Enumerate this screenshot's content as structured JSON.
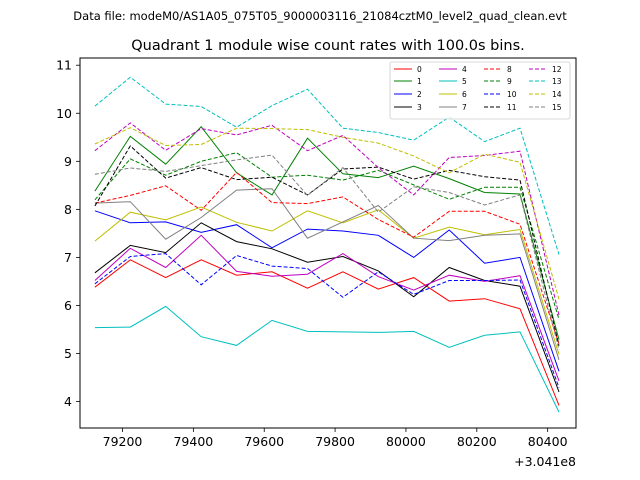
{
  "chart_data": {
    "type": "line",
    "suptitle": "Data file: modeM0/AS1A05_075T05_9000003116_21084cztM0_level2_quad_clean.evt",
    "title": "Quadrant 1 module wise count rates with 100.0s bins.",
    "xlabel": "",
    "ylabel": "",
    "offset_text": "+3.041e8",
    "xlim": [
      79080,
      80480
    ],
    "ylim": [
      3.45,
      11.15
    ],
    "xticks": [
      79200,
      79400,
      79600,
      79800,
      80000,
      80200,
      80400
    ],
    "xtick_labels": [
      "79200",
      "79400",
      "79600",
      "79800",
      "80000",
      "80200",
      "80400"
    ],
    "yticks": [
      4,
      5,
      6,
      7,
      8,
      9,
      10,
      11
    ],
    "ytick_labels": [
      "4",
      "5",
      "6",
      "7",
      "8",
      "9",
      "10",
      "11"
    ],
    "legend_location": "upper right",
    "x": [
      79122,
      79222,
      79322,
      79422,
      79522,
      79622,
      79722,
      79822,
      79922,
      80022,
      80122,
      80222,
      80322,
      80432
    ],
    "series": [
      {
        "name": "0",
        "color": "#ff0000",
        "dash": "solid",
        "values": [
          6.38,
          6.95,
          6.58,
          6.95,
          6.63,
          6.7,
          6.36,
          6.7,
          6.34,
          6.58,
          6.09,
          6.14,
          5.93,
          3.92
        ]
      },
      {
        "name": "1",
        "color": "#008000",
        "dash": "solid",
        "values": [
          8.38,
          9.52,
          8.94,
          9.72,
          8.76,
          8.3,
          9.48,
          8.74,
          8.66,
          8.9,
          8.64,
          8.35,
          8.32,
          5.29
        ]
      },
      {
        "name": "2",
        "color": "#0000ff",
        "dash": "solid",
        "values": [
          7.97,
          7.72,
          7.74,
          7.52,
          7.68,
          7.2,
          7.59,
          7.55,
          7.46,
          7.0,
          7.57,
          6.88,
          7.0,
          4.63
        ]
      },
      {
        "name": "3",
        "color": "#000000",
        "dash": "solid",
        "values": [
          6.68,
          7.25,
          7.1,
          7.72,
          7.33,
          7.18,
          6.9,
          7.02,
          6.72,
          6.18,
          6.79,
          6.52,
          6.4,
          4.2
        ]
      },
      {
        "name": "4",
        "color": "#bf00bf",
        "dash": "solid",
        "values": [
          6.52,
          7.19,
          6.79,
          7.46,
          6.71,
          6.61,
          6.65,
          7.08,
          6.6,
          6.32,
          6.63,
          6.5,
          6.62,
          4.43
        ]
      },
      {
        "name": "5",
        "color": "#00bfbf",
        "dash": "solid",
        "values": [
          5.54,
          5.55,
          5.98,
          5.35,
          5.17,
          5.69,
          5.46,
          5.45,
          5.44,
          5.46,
          5.13,
          5.38,
          5.45,
          3.78
        ]
      },
      {
        "name": "6",
        "color": "#bfbf00",
        "dash": "solid",
        "values": [
          7.34,
          7.94,
          7.78,
          8.05,
          7.73,
          7.55,
          7.97,
          7.72,
          7.99,
          7.4,
          7.63,
          7.47,
          7.58,
          4.98
        ]
      },
      {
        "name": "7",
        "color": "#808080",
        "dash": "solid",
        "values": [
          8.13,
          8.16,
          7.38,
          7.83,
          8.4,
          8.43,
          7.4,
          7.74,
          8.08,
          7.4,
          7.35,
          7.46,
          7.49,
          4.87
        ]
      },
      {
        "name": "8",
        "color": "#ff0000",
        "dash": "dashed",
        "values": [
          8.13,
          8.29,
          8.49,
          7.98,
          8.77,
          8.14,
          8.12,
          8.26,
          7.79,
          7.42,
          7.96,
          7.96,
          7.69,
          5.2
        ]
      },
      {
        "name": "9",
        "color": "#008000",
        "dash": "dashed",
        "values": [
          8.2,
          9.05,
          8.71,
          9.0,
          9.18,
          8.67,
          8.71,
          8.61,
          8.81,
          8.51,
          8.21,
          8.46,
          8.46,
          5.71
        ]
      },
      {
        "name": "10",
        "color": "#0000ff",
        "dash": "dashed",
        "values": [
          6.45,
          7.02,
          7.08,
          6.43,
          7.04,
          6.82,
          6.77,
          6.17,
          6.7,
          6.23,
          6.52,
          6.52,
          6.53,
          4.29
        ]
      },
      {
        "name": "11",
        "color": "#000000",
        "dash": "dashed",
        "values": [
          8.07,
          9.32,
          8.65,
          8.87,
          8.62,
          8.67,
          8.3,
          8.84,
          8.88,
          8.63,
          8.81,
          8.68,
          8.61,
          5.16
        ]
      },
      {
        "name": "12",
        "color": "#bf00bf",
        "dash": "dashed",
        "values": [
          9.22,
          9.8,
          9.23,
          9.68,
          9.55,
          9.75,
          9.22,
          9.54,
          8.87,
          8.3,
          9.08,
          9.12,
          9.21,
          5.8
        ]
      },
      {
        "name": "13",
        "color": "#00bfbf",
        "dash": "dashed",
        "values": [
          10.15,
          10.75,
          10.19,
          10.14,
          9.71,
          10.16,
          10.5,
          9.69,
          9.6,
          9.44,
          9.92,
          9.41,
          9.69,
          7.06
        ]
      },
      {
        "name": "14",
        "color": "#bfbf00",
        "dash": "dashed",
        "values": [
          9.36,
          9.7,
          9.33,
          9.35,
          9.69,
          9.68,
          9.66,
          9.5,
          9.38,
          9.11,
          8.76,
          9.15,
          8.98,
          6.13
        ]
      },
      {
        "name": "15",
        "color": "#808080",
        "dash": "dashed",
        "values": [
          8.73,
          8.86,
          8.79,
          8.91,
          9.03,
          9.13,
          8.29,
          8.87,
          7.94,
          8.47,
          8.35,
          8.09,
          8.3,
          5.08
        ]
      }
    ]
  }
}
